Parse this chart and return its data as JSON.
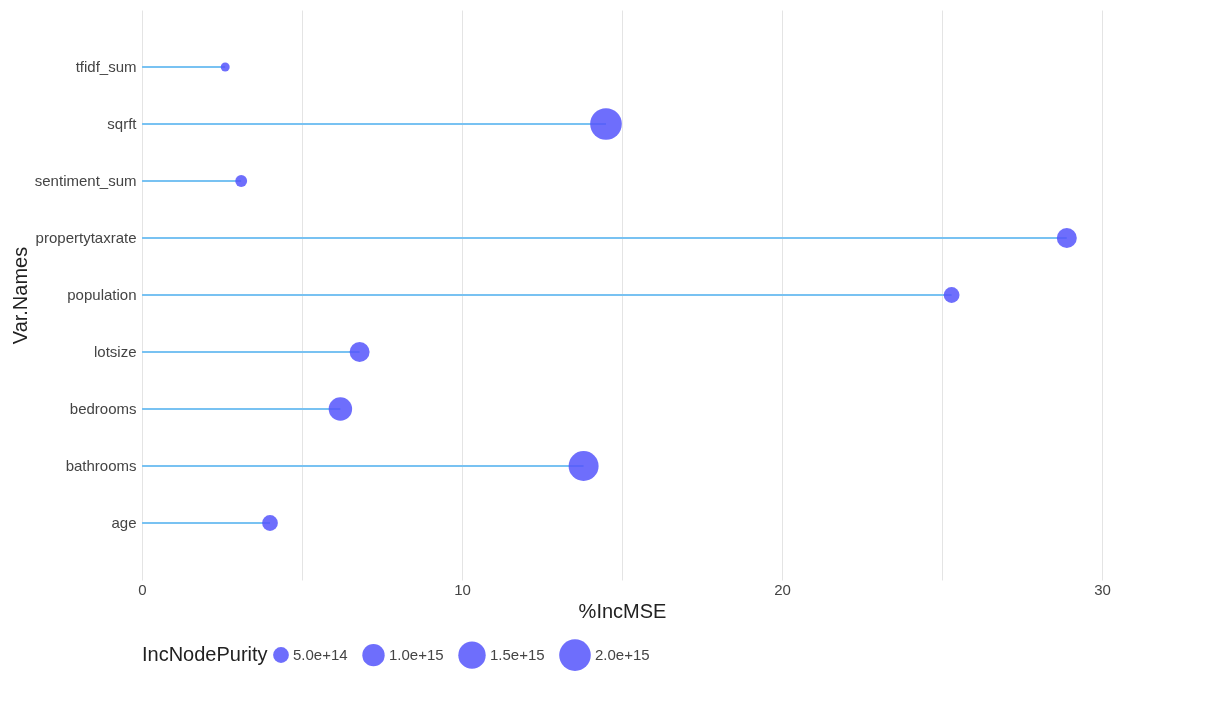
{
  "chart_data": {
    "type": "lollipop",
    "orientation": "horizontal",
    "xlabel": "%IncMSE",
    "ylabel": "Var.Names",
    "legend_title": "IncNodePurity",
    "grid": "x",
    "marker": "circle",
    "categories": [
      "tfidf_sum",
      "sqrft",
      "sentiment_sum",
      "propertytaxrate",
      "population",
      "lotsize",
      "bedrooms",
      "bathrooms",
      "age"
    ],
    "xlim": [
      0,
      30
    ],
    "xticks": [
      0,
      {
        "value": 5,
        "label": null
      },
      10,
      {
        "value": 15,
        "label": null
      },
      20,
      {
        "value": 25,
        "label": null
      },
      30
    ],
    "size_legend": [
      {
        "value": 500000000000000,
        "label": "5.0e+14"
      },
      {
        "value": 1000000000000000,
        "label": "1.0e+15"
      },
      {
        "value": 1500000000000000,
        "label": "1.5e+15"
      },
      {
        "value": 2000000000000000,
        "label": "2.0e+15"
      }
    ],
    "series": [
      {
        "color": "#5555fb",
        "values": [
          2.6,
          14.5,
          3.1,
          28.9,
          25.3,
          6.8,
          6.2,
          13.8,
          4.0
        ],
        "sizes": [
          160000000000000,
          2000000000000000,
          280000000000000,
          800000000000000,
          500000000000000,
          800000000000000,
          1100000000000000,
          1800000000000000,
          500000000000000
        ]
      }
    ]
  }
}
